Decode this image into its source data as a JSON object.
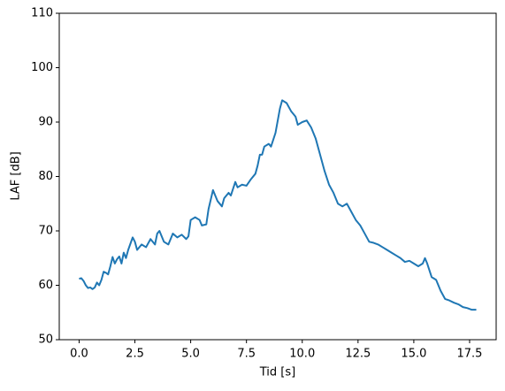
{
  "chart_data": {
    "type": "line",
    "xlabel": "Tid [s]",
    "ylabel": "LAF [dB]",
    "xlim": [
      -0.89,
      18.69
    ],
    "ylim": [
      50,
      110
    ],
    "xticks": [
      {
        "value": 0,
        "label": "0.0"
      },
      2.5,
      {
        "value": 5,
        "label": "5.0"
      },
      7.5,
      {
        "value": 10,
        "label": "10.0"
      },
      12.5,
      {
        "value": 15,
        "label": "15.0"
      },
      17.5
    ],
    "yticks": [
      50,
      60,
      70,
      80,
      90,
      100,
      110
    ],
    "series": [
      {
        "color": "#1f77b4",
        "x": [
          0.0,
          0.1,
          0.2,
          0.3,
          0.4,
          0.5,
          0.6,
          0.7,
          0.8,
          0.9,
          1.0,
          1.1,
          1.2,
          1.3,
          1.4,
          1.5,
          1.6,
          1.7,
          1.8,
          1.9,
          2.0,
          2.1,
          2.2,
          2.4,
          2.5,
          2.6,
          2.8,
          3.0,
          3.2,
          3.4,
          3.5,
          3.6,
          3.8,
          4.0,
          4.2,
          4.4,
          4.6,
          4.8,
          4.9,
          5.0,
          5.2,
          5.4,
          5.5,
          5.7,
          5.8,
          6.0,
          6.2,
          6.4,
          6.5,
          6.7,
          6.8,
          7.0,
          7.1,
          7.3,
          7.5,
          7.7,
          7.9,
          8.0,
          8.1,
          8.2,
          8.3,
          8.5,
          8.6,
          8.8,
          9.0,
          9.1,
          9.3,
          9.5,
          9.7,
          9.8,
          10.0,
          10.2,
          10.4,
          10.6,
          10.8,
          11.0,
          11.2,
          11.4,
          11.6,
          11.8,
          12.0,
          12.2,
          12.4,
          12.6,
          12.8,
          13.0,
          13.2,
          13.4,
          13.6,
          13.8,
          14.0,
          14.2,
          14.4,
          14.6,
          14.8,
          15.0,
          15.2,
          15.4,
          15.5,
          15.6,
          15.8,
          16.0,
          16.2,
          16.4,
          16.6,
          16.8,
          17.0,
          17.2,
          17.4,
          17.6,
          17.8
        ],
        "values": [
          61.2,
          61.3,
          60.8,
          60.0,
          59.5,
          59.6,
          59.3,
          59.6,
          60.5,
          60.0,
          61.0,
          62.5,
          62.3,
          62.0,
          63.5,
          65.2,
          64.0,
          64.8,
          65.3,
          64.0,
          66.0,
          65.0,
          66.5,
          68.8,
          68.0,
          66.5,
          67.5,
          67.0,
          68.5,
          67.5,
          69.5,
          70.0,
          68.0,
          67.5,
          69.5,
          68.8,
          69.3,
          68.5,
          69.0,
          72.0,
          72.5,
          72.0,
          71.0,
          71.2,
          74.0,
          77.5,
          75.5,
          74.5,
          76.0,
          77.0,
          76.5,
          79.0,
          78.0,
          78.5,
          78.3,
          79.5,
          80.5,
          82.0,
          84.0,
          84.0,
          85.5,
          86.0,
          85.5,
          88.0,
          92.5,
          94.0,
          93.5,
          92.0,
          91.0,
          89.5,
          90.0,
          90.3,
          89.0,
          87.0,
          84.0,
          81.0,
          78.5,
          77.0,
          75.0,
          74.5,
          75.0,
          73.5,
          72.0,
          71.0,
          69.5,
          68.0,
          67.8,
          67.5,
          67.0,
          66.5,
          66.0,
          65.5,
          65.0,
          64.3,
          64.5,
          64.0,
          63.5,
          64.0,
          65.0,
          64.0,
          61.5,
          61.0,
          59.0,
          57.5,
          57.2,
          56.8,
          56.5,
          56.0,
          55.8,
          55.5,
          55.5
        ]
      }
    ]
  }
}
